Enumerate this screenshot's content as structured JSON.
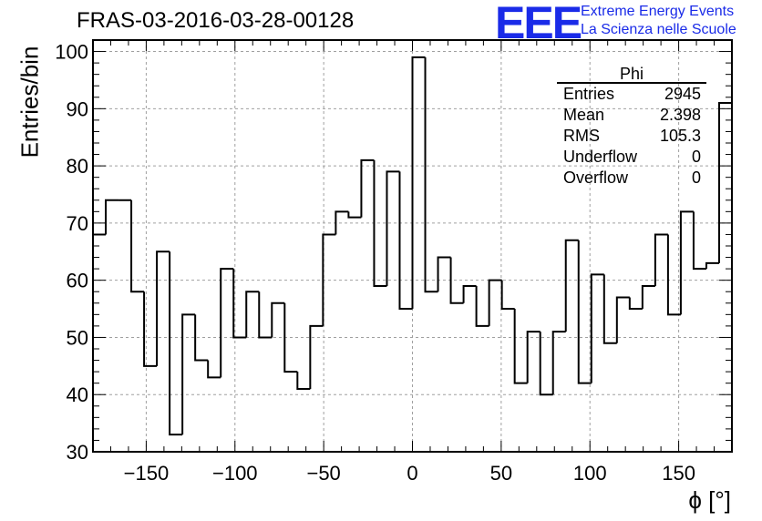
{
  "chart_data": {
    "type": "histogram",
    "title": "FRAS-03-2016-03-28-00128",
    "xlabel": "ϕ [°]",
    "ylabel": "Entries/bin",
    "xlim": [
      -180,
      180
    ],
    "ylim": [
      30,
      102
    ],
    "grid": true,
    "bin_edges": [
      -180,
      -172.8,
      -165.6,
      -158.4,
      -151.2,
      -144,
      -136.8,
      -129.6,
      -122.4,
      -115.2,
      -108,
      -100.8,
      -93.6,
      -86.4,
      -79.2,
      -72,
      -64.8,
      -57.6,
      -50.4,
      -43.2,
      -36,
      -28.8,
      -21.6,
      -14.4,
      -7.2,
      0,
      7.2,
      14.4,
      21.6,
      28.8,
      36,
      43.2,
      50.4,
      57.6,
      64.8,
      72,
      79.2,
      86.4,
      93.6,
      100.8,
      108,
      115.2,
      122.4,
      129.6,
      136.8,
      144,
      151.2,
      158.4,
      165.6,
      172.8,
      180
    ],
    "values": [
      68,
      74,
      74,
      58,
      45,
      65,
      33,
      54,
      46,
      43,
      62,
      50,
      58,
      50,
      56,
      44,
      41,
      52,
      68,
      72,
      71,
      81,
      59,
      79,
      55,
      99,
      58,
      64,
      56,
      59,
      52,
      60,
      55,
      42,
      51,
      40,
      51,
      67,
      42,
      61,
      49,
      57,
      55,
      59,
      68,
      54,
      72,
      62,
      63,
      91
    ],
    "x_ticks": [
      -150,
      -100,
      -50,
      0,
      50,
      100,
      150
    ],
    "y_ticks": [
      30,
      40,
      50,
      60,
      70,
      80,
      90,
      100
    ],
    "stats_box": {
      "title": "Phi",
      "rows": [
        {
          "label": "Entries",
          "value": "2945"
        },
        {
          "label": "Mean",
          "value": "2.398"
        },
        {
          "label": "RMS",
          "value": "105.3"
        },
        {
          "label": "Underflow",
          "value": "0"
        },
        {
          "label": "Overflow",
          "value": "0"
        }
      ]
    }
  },
  "logo": {
    "mark": "EEE",
    "line1": "Extreme Energy Events",
    "line2": "La Scienza nelle Scuole"
  },
  "colors": {
    "logo": "#1a2be8",
    "line": "#000000",
    "grid": "#a0a0a0"
  }
}
